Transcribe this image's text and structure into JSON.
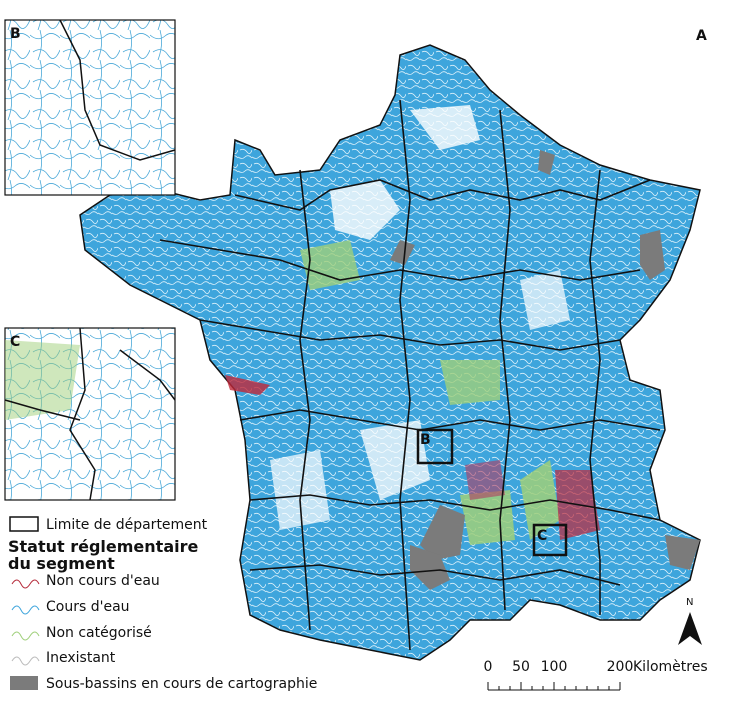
{
  "panel_label": "A",
  "insets": [
    {
      "label": "B"
    },
    {
      "label": "C"
    }
  ],
  "map_boxes": [
    {
      "label": "B"
    },
    {
      "label": "C"
    }
  ],
  "legend": {
    "boundary": "Limite de département",
    "title_lines": [
      "Statut réglementaire",
      "du segment"
    ],
    "items": [
      "Non cours d'eau",
      "Cours d'eau",
      "Non catégorisé",
      "Inexistant",
      "Sous-bassins en cours de cartographie"
    ]
  },
  "scale": {
    "ticks": [
      0,
      50,
      100,
      200
    ],
    "unit": "Kilomètres"
  },
  "north": "N"
}
